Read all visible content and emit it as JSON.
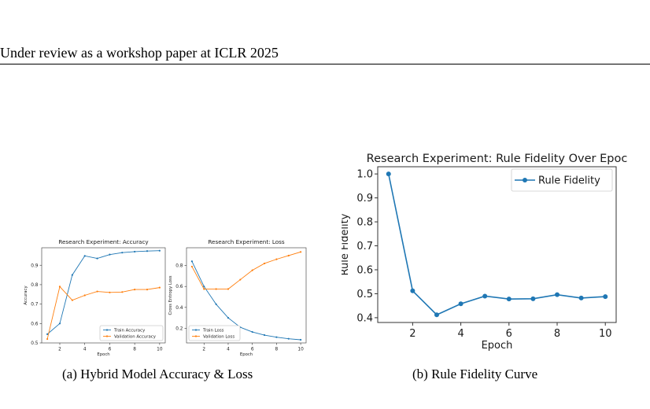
{
  "header": {
    "text": "Under review as a workshop paper at ICLR 2025"
  },
  "captions": {
    "a": "(a)  Hybrid Model Accuracy & Loss",
    "b": "(b)  Rule Fidelity Curve"
  },
  "colors": {
    "blue": "#1f77b4",
    "orange": "#ff7f0e"
  },
  "chart_data": [
    {
      "type": "line",
      "title": "Research Experiment: Accuracy",
      "xlabel": "Epoch",
      "ylabel": "Accuracy",
      "x": [
        1,
        2,
        3,
        4,
        5,
        6,
        7,
        8,
        9,
        10
      ],
      "xticks": [
        2,
        4,
        6,
        8,
        10
      ],
      "yticks": [
        0.5,
        0.6,
        0.7,
        0.8,
        0.9
      ],
      "ylim": [
        0.5,
        0.99
      ],
      "xlim": [
        0.55,
        10.45
      ],
      "series": [
        {
          "name": "Train Accuracy",
          "color": "#1f77b4",
          "values": [
            0.545,
            0.6,
            0.85,
            0.948,
            0.935,
            0.955,
            0.965,
            0.97,
            0.973,
            0.975
          ]
        },
        {
          "name": "Validation Accuracy",
          "color": "#ff7f0e",
          "values": [
            0.52,
            0.79,
            0.72,
            0.745,
            0.765,
            0.76,
            0.762,
            0.775,
            0.775,
            0.785
          ]
        }
      ],
      "legend": "lower-right",
      "grid": false
    },
    {
      "type": "line",
      "title": "Research Experiment: Loss",
      "xlabel": "Epoch",
      "ylabel": "Cross Entropy Loss",
      "x": [
        1,
        2,
        3,
        4,
        5,
        6,
        7,
        8,
        9,
        10
      ],
      "xticks": [
        2,
        4,
        6,
        8,
        10
      ],
      "yticks": [
        0.2,
        0.4,
        0.6,
        0.8
      ],
      "ylim": [
        0.06,
        0.97
      ],
      "xlim": [
        0.55,
        10.45
      ],
      "series": [
        {
          "name": "Train Loss",
          "color": "#1f77b4",
          "values": [
            0.84,
            0.6,
            0.43,
            0.3,
            0.21,
            0.165,
            0.135,
            0.115,
            0.1,
            0.09
          ]
        },
        {
          "name": "Validation Loss",
          "color": "#ff7f0e",
          "values": [
            0.79,
            0.575,
            0.575,
            0.575,
            0.665,
            0.755,
            0.82,
            0.86,
            0.895,
            0.93
          ]
        }
      ],
      "legend": "lower-left",
      "grid": false
    },
    {
      "type": "line",
      "title": "Research Experiment: Rule Fidelity Over Epoc",
      "xlabel": "Epoch",
      "ylabel": "Rule Fidelity",
      "x": [
        1,
        2,
        3,
        4,
        5,
        6,
        7,
        8,
        9,
        10
      ],
      "xticks": [
        2,
        4,
        6,
        8,
        10
      ],
      "yticks": [
        0.4,
        0.5,
        0.6,
        0.7,
        0.8,
        0.9,
        1.0
      ],
      "ytick_labels": [
        "0.4",
        "0.5",
        "0.6",
        "0.7",
        "0.8",
        "0.9",
        "1.0"
      ],
      "ylim": [
        0.38,
        1.03
      ],
      "xlim": [
        0.55,
        10.45
      ],
      "series": [
        {
          "name": "Rule Fidelity",
          "color": "#1f77b4",
          "values": [
            1.0,
            0.512,
            0.412,
            0.458,
            0.49,
            0.478,
            0.479,
            0.496,
            0.482,
            0.488
          ]
        }
      ],
      "legend": "top-right",
      "grid": false
    }
  ]
}
